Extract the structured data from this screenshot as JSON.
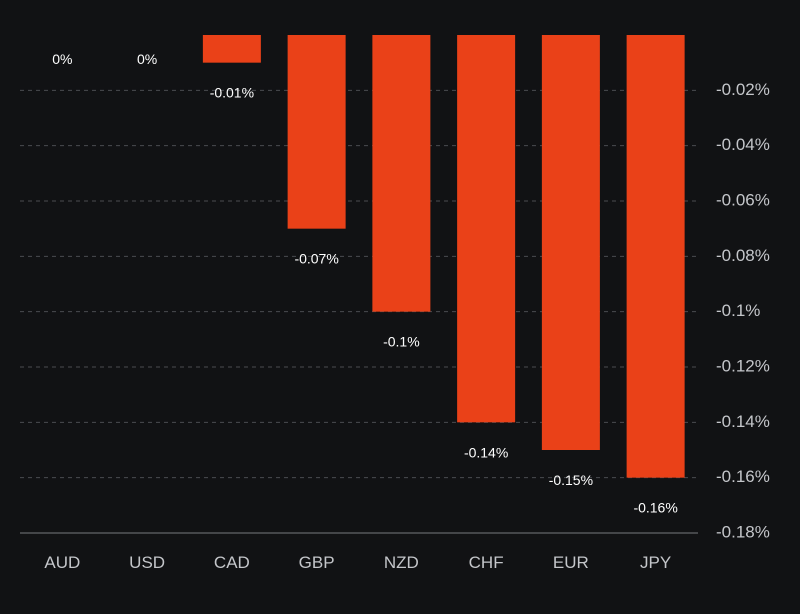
{
  "chart_data": {
    "type": "bar",
    "title": "",
    "xlabel": "",
    "ylabel": "",
    "categories": [
      "AUD",
      "USD",
      "CAD",
      "GBP",
      "NZD",
      "CHF",
      "EUR",
      "JPY"
    ],
    "values": [
      0,
      0,
      -0.01,
      -0.07,
      -0.1,
      -0.14,
      -0.15,
      -0.16
    ],
    "data_labels": [
      "0%",
      "0%",
      "-0.01%",
      "-0.07%",
      "-0.1%",
      "-0.14%",
      "-0.15%",
      "-0.16%"
    ],
    "ylim": [
      -0.18,
      0
    ],
    "y_ticks": [
      -0.02,
      -0.04,
      -0.06,
      -0.08,
      -0.1,
      -0.12,
      -0.14,
      -0.16,
      -0.18
    ],
    "y_tick_labels": [
      "-0.02%",
      "-0.04%",
      "-0.06%",
      "-0.08%",
      "-0.1%",
      "-0.12%",
      "-0.14%",
      "-0.16%",
      "-0.18%"
    ],
    "y_axis_side": "right",
    "grid": true,
    "bar_color": "#ea4118",
    "background": "#111214"
  }
}
